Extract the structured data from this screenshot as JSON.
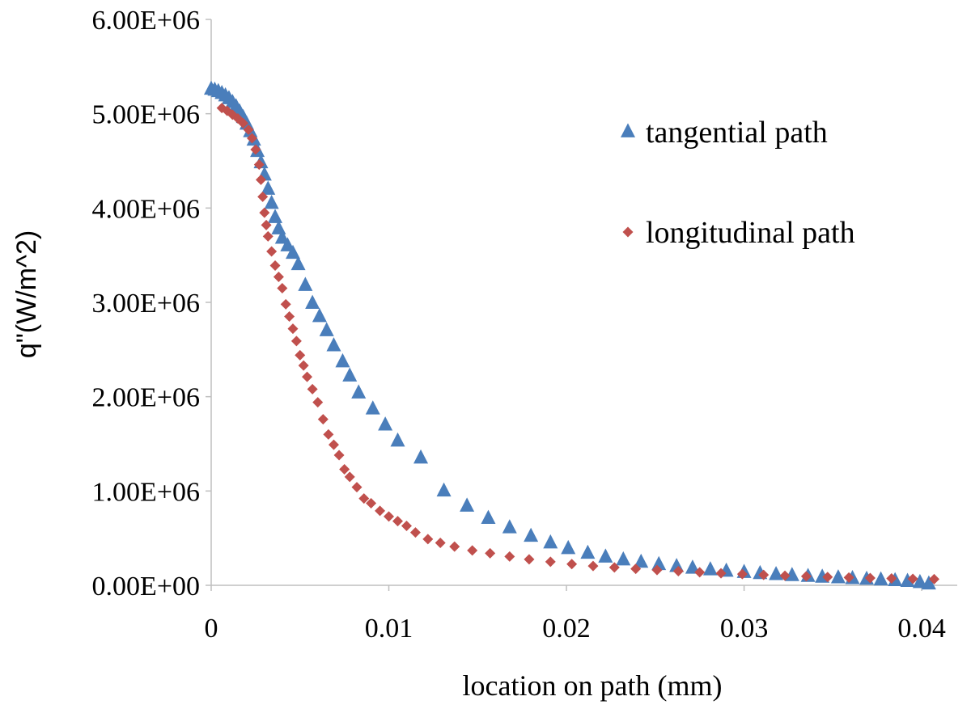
{
  "chart_data": {
    "type": "scatter",
    "xlabel": "location on path (mm)",
    "ylabel": "q\"(W/m^2)",
    "xlim": [
      0,
      0.042
    ],
    "ylim": [
      0,
      6000000
    ],
    "x_ticks": [
      0,
      0.01,
      0.02,
      0.03,
      0.04
    ],
    "x_tick_labels": [
      "0",
      "0.01",
      "0.02",
      "0.03",
      "0.04"
    ],
    "y_ticks": [
      0,
      1000000,
      2000000,
      3000000,
      4000000,
      5000000,
      6000000
    ],
    "y_tick_labels": [
      "0.00E+00",
      "1.00E+06",
      "2.00E+06",
      "3.00E+06",
      "4.00E+06",
      "5.00E+06",
      "6.00E+06"
    ],
    "grid": false,
    "legend_position": "right",
    "series": [
      {
        "name": "tangential path",
        "marker": "triangle",
        "color": "#4a7ebb",
        "points": [
          [
            0.0,
            5260000
          ],
          [
            0.0002,
            5250000
          ],
          [
            0.0004,
            5235000
          ],
          [
            0.0006,
            5215000
          ],
          [
            0.0008,
            5190000
          ],
          [
            0.001,
            5160000
          ],
          [
            0.0012,
            5120000
          ],
          [
            0.0014,
            5075000
          ],
          [
            0.0016,
            5020000
          ],
          [
            0.0018,
            4960000
          ],
          [
            0.002,
            4890000
          ],
          [
            0.0022,
            4810000
          ],
          [
            0.0024,
            4720000
          ],
          [
            0.0026,
            4600000
          ],
          [
            0.0028,
            4480000
          ],
          [
            0.003,
            4350000
          ],
          [
            0.0032,
            4200000
          ],
          [
            0.0034,
            4050000
          ],
          [
            0.0036,
            3900000
          ],
          [
            0.0038,
            3780000
          ],
          [
            0.004,
            3680000
          ],
          [
            0.0043,
            3600000
          ],
          [
            0.0046,
            3520000
          ],
          [
            0.0049,
            3400000
          ],
          [
            0.0053,
            3180000
          ],
          [
            0.0057,
            2990000
          ],
          [
            0.0061,
            2850000
          ],
          [
            0.0065,
            2700000
          ],
          [
            0.0069,
            2540000
          ],
          [
            0.0074,
            2370000
          ],
          [
            0.0078,
            2220000
          ],
          [
            0.0083,
            2040000
          ],
          [
            0.0091,
            1870000
          ],
          [
            0.0098,
            1700000
          ],
          [
            0.0105,
            1530000
          ],
          [
            0.0118,
            1350000
          ],
          [
            0.0131,
            1000000
          ],
          [
            0.0144,
            840000
          ],
          [
            0.0156,
            710000
          ],
          [
            0.0168,
            610000
          ],
          [
            0.018,
            520000
          ],
          [
            0.0191,
            450000
          ],
          [
            0.0201,
            390000
          ],
          [
            0.0212,
            340000
          ],
          [
            0.0222,
            300000
          ],
          [
            0.0232,
            270000
          ],
          [
            0.0242,
            245000
          ],
          [
            0.0252,
            220000
          ],
          [
            0.0262,
            200000
          ],
          [
            0.0271,
            182000
          ],
          [
            0.0281,
            165000
          ],
          [
            0.029,
            150000
          ],
          [
            0.03,
            137000
          ],
          [
            0.0309,
            125000
          ],
          [
            0.0318,
            114000
          ],
          [
            0.0327,
            104000
          ],
          [
            0.0336,
            95000
          ],
          [
            0.0344,
            87000
          ],
          [
            0.0353,
            80000
          ],
          [
            0.0361,
            72000
          ],
          [
            0.0369,
            65000
          ],
          [
            0.0377,
            58000
          ],
          [
            0.0385,
            50000
          ],
          [
            0.0392,
            42000
          ],
          [
            0.0399,
            30000
          ],
          [
            0.0404,
            15000
          ]
        ]
      },
      {
        "name": "longitudinal path",
        "marker": "diamond",
        "color": "#c0504d",
        "points": [
          [
            0.0006,
            5060000
          ],
          [
            0.0009,
            5030000
          ],
          [
            0.0012,
            4990000
          ],
          [
            0.0015,
            4950000
          ],
          [
            0.0018,
            4900000
          ],
          [
            0.0021,
            4830000
          ],
          [
            0.0023,
            4740000
          ],
          [
            0.0025,
            4620000
          ],
          [
            0.0027,
            4460000
          ],
          [
            0.0028,
            4300000
          ],
          [
            0.0029,
            4120000
          ],
          [
            0.003,
            3950000
          ],
          [
            0.0031,
            3820000
          ],
          [
            0.0032,
            3700000
          ],
          [
            0.0034,
            3540000
          ],
          [
            0.0036,
            3390000
          ],
          [
            0.0038,
            3270000
          ],
          [
            0.004,
            3150000
          ],
          [
            0.0042,
            2980000
          ],
          [
            0.0044,
            2850000
          ],
          [
            0.0046,
            2720000
          ],
          [
            0.0048,
            2590000
          ],
          [
            0.005,
            2440000
          ],
          [
            0.0052,
            2330000
          ],
          [
            0.0054,
            2210000
          ],
          [
            0.0057,
            2080000
          ],
          [
            0.006,
            1940000
          ],
          [
            0.0063,
            1760000
          ],
          [
            0.0066,
            1600000
          ],
          [
            0.0069,
            1490000
          ],
          [
            0.0072,
            1380000
          ],
          [
            0.0075,
            1230000
          ],
          [
            0.0078,
            1150000
          ],
          [
            0.0082,
            1040000
          ],
          [
            0.0086,
            920000
          ],
          [
            0.009,
            870000
          ],
          [
            0.0095,
            790000
          ],
          [
            0.01,
            730000
          ],
          [
            0.0105,
            680000
          ],
          [
            0.011,
            630000
          ],
          [
            0.0115,
            560000
          ],
          [
            0.0122,
            490000
          ],
          [
            0.0129,
            450000
          ],
          [
            0.0137,
            410000
          ],
          [
            0.0147,
            370000
          ],
          [
            0.0157,
            340000
          ],
          [
            0.0168,
            305000
          ],
          [
            0.0179,
            275000
          ],
          [
            0.0191,
            250000
          ],
          [
            0.0203,
            225000
          ],
          [
            0.0215,
            205000
          ],
          [
            0.0227,
            190000
          ],
          [
            0.0239,
            175000
          ],
          [
            0.0251,
            162000
          ],
          [
            0.0263,
            150000
          ],
          [
            0.0275,
            138000
          ],
          [
            0.0287,
            128000
          ],
          [
            0.0299,
            119000
          ],
          [
            0.0311,
            110000
          ],
          [
            0.0323,
            102000
          ],
          [
            0.0335,
            95000
          ],
          [
            0.0347,
            88000
          ],
          [
            0.0359,
            82000
          ],
          [
            0.0371,
            77000
          ],
          [
            0.0383,
            73000
          ],
          [
            0.0395,
            69000
          ],
          [
            0.0407,
            65000
          ]
        ]
      }
    ]
  }
}
